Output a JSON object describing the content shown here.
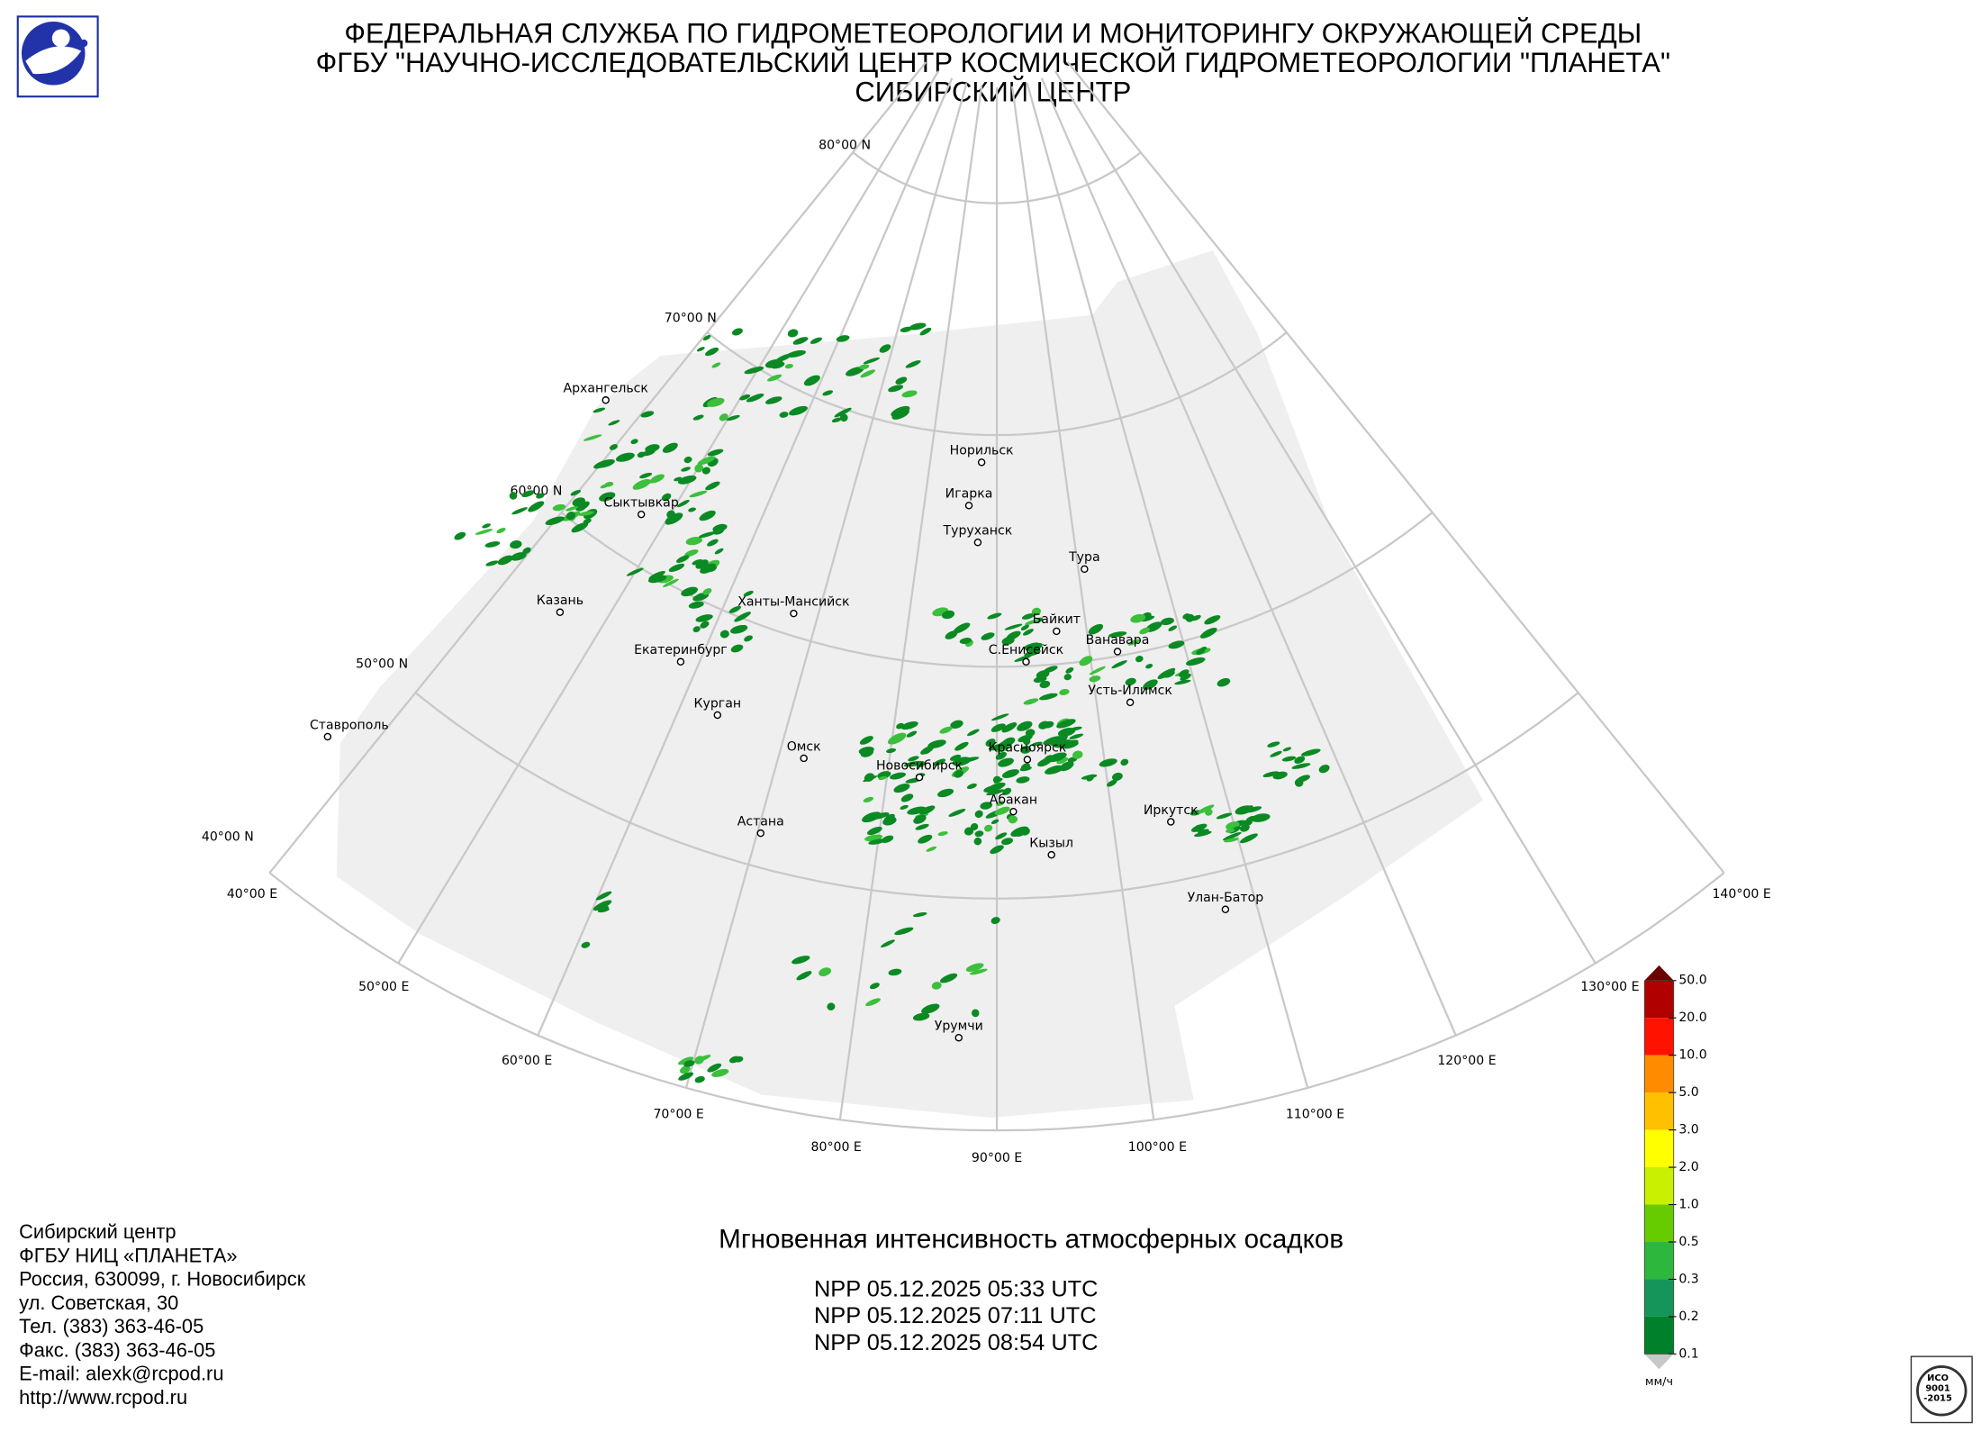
{
  "header": {
    "lines": [
      "ФЕДЕРАЛЬНАЯ СЛУЖБА ПО ГИДРОМЕТЕОРОЛОГИИ И МОНИТОРИНГУ ОКРУЖАЮЩЕЙ СРЕДЫ",
      "ФГБУ \"НАУЧНО-ИССЛЕДОВАТЕЛЬСКИЙ ЦЕНТР КОСМИЧЕСКОЙ ГИДРОМЕТЕОРОЛОГИИ \"ПЛАНЕТА\"",
      "СИБИРСКИЙ ЦЕНТР"
    ]
  },
  "graticule": {
    "lat_labels": [
      "80°00 N",
      "70°00 N",
      "60°00 N",
      "50°00 N",
      "40°00 N"
    ],
    "lon_labels": [
      "40°00 E",
      "50°00 E",
      "60°00 E",
      "70°00 E",
      "80°00 E",
      "90°00 E",
      "100°00 E",
      "110°00 E",
      "120°00 E",
      "130°00 E",
      "140°00 E"
    ]
  },
  "cities": [
    "Архангельск",
    "Сыктывкар",
    "Казань",
    "Екатеринбург",
    "Курган",
    "Ханты-Мансийск",
    "Омск",
    "Астана",
    "Ставрополь",
    "Норильск",
    "Игарка",
    "Туруханск",
    "Тура",
    "Байкит",
    "Ванавара",
    "С.Енисейск",
    "Усть-Илимск",
    "Новосибирск",
    "Красноярск",
    "Абакан",
    "Иркутск",
    "Кызыл",
    "Улан-Батор",
    "Урумчи"
  ],
  "legend": {
    "levels": [
      {
        "value": 50,
        "label": "50.0"
      },
      {
        "value": 20,
        "label": "20.0"
      },
      {
        "value": 10,
        "label": "10.0"
      },
      {
        "value": 5,
        "label": "5.0"
      },
      {
        "value": 3,
        "label": "3.0"
      },
      {
        "value": 2,
        "label": "2.0"
      },
      {
        "value": 1,
        "label": "1.0"
      },
      0.5,
      0.3,
      0.2,
      0.1
    ],
    "colors": [
      "#b00000",
      "#ff1200",
      "#ff8c00",
      "#ffc000",
      "#ffff00",
      "#c8f000",
      "#66cc00",
      "#2db83d",
      "#16955a",
      "#00802a"
    ],
    "over_color": "#6b0000",
    "under_color": "#c8c8c8",
    "unit": "мм/ч"
  },
  "footer": {
    "contact": [
      "Сибирский центр",
      "ФГБУ НИЦ «ПЛАНЕТА»",
      "Россия, 630099, г. Новосибирск",
      "ул. Советская, 30",
      "Тел. (383) 363-46-05",
      "Факс. (383) 363-46-05",
      "E-mail: alexk@rcpod.ru",
      "http://www.rcpod.ru"
    ],
    "title": "Мгновенная интенсивность атмосферных осадков",
    "passes": [
      "NPP 05.12.2025  05:33 UTC",
      "NPP 05.12.2025  07:11 UTC",
      "NPP 05.12.2025  08:54 UTC"
    ]
  },
  "certificate": [
    "ИСО",
    "9001",
    "-2015"
  ]
}
